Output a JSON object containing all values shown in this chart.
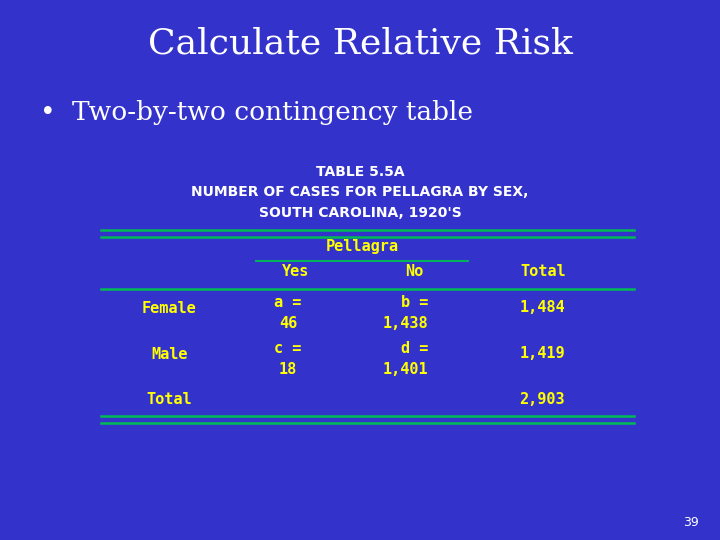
{
  "bg_color": "#3333CC",
  "title": "Calculate Relative Risk",
  "title_color": "#FFFFFF",
  "title_fontsize": 26,
  "bullet_text": "Two-by-two contingency table",
  "bullet_color": "#FFFFFF",
  "bullet_fontsize": 19,
  "subtitle1": "TABLE 5.5A",
  "subtitle2": "NUMBER OF CASES FOR PELLAGRA BY SEX,",
  "subtitle3": "SOUTH CAROLINA, 1920'S",
  "subtitle_color": "#FFFFFF",
  "subtitle_fontsize": 10,
  "table_header": "Pellagra",
  "col_headers": [
    "Yes",
    "No",
    "Total"
  ],
  "row_labels": [
    "Female",
    "Male",
    "Total"
  ],
  "cell_data": [
    [
      "a =",
      "b =",
      "1,484"
    ],
    [
      "c =",
      "d =",
      "1,419"
    ],
    [
      "",
      "",
      "2,903"
    ]
  ],
  "cell_data2": [
    [
      "46",
      "1,438",
      ""
    ],
    [
      "18",
      "1,401",
      ""
    ],
    [
      "",
      "",
      ""
    ]
  ],
  "table_text_color": "#FFFF00",
  "table_fontsize": 11,
  "line_color": "#00BB55",
  "page_number": "39",
  "page_number_color": "#FFFFFF",
  "page_number_fontsize": 9
}
